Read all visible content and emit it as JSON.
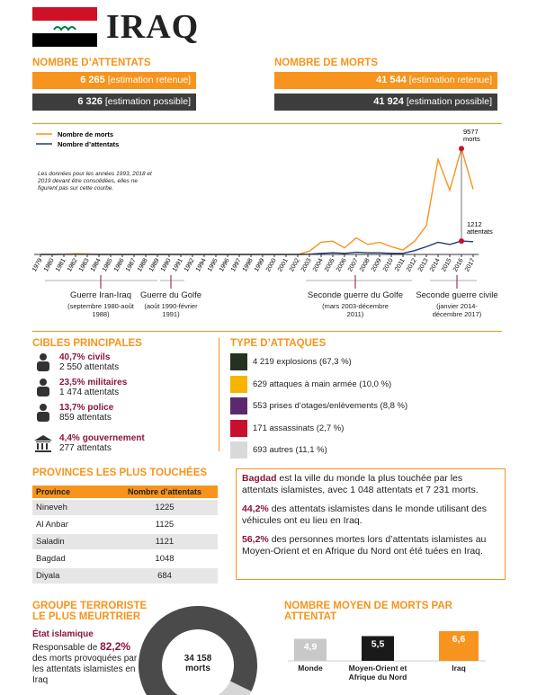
{
  "header": {
    "title": "IRAQ"
  },
  "attacks": {
    "title": "NOMBRE D’ATTENTATS",
    "rows": [
      {
        "value": "6 265",
        "note": "[estimation retenue]"
      },
      {
        "value": "6 326",
        "note": "[estimation possible]"
      }
    ]
  },
  "deaths": {
    "title": "NOMBRE DE MORTS",
    "rows": [
      {
        "value": "41 544",
        "note": "[estimation retenue]"
      },
      {
        "value": "41 924",
        "note": "[estimation possible]"
      }
    ]
  },
  "chart_data": [
    {
      "type": "line",
      "note": "Les données pour les années 1993, 2018 et 2019 devant être consolidées, elles ne figurent pas sur cette courbe.",
      "categories": [
        "1979",
        "1980",
        "1981",
        "1982",
        "1983",
        "1984",
        "1985",
        "1986",
        "1987",
        "1988",
        "1989",
        "1990",
        "1991",
        "1992",
        "1994",
        "1995",
        "1996",
        "1997",
        "1998",
        "1999",
        "2000",
        "2001",
        "2002",
        "2003",
        "2004",
        "2005",
        "2006",
        "2007",
        "2008",
        "2009",
        "2010",
        "2011",
        "2012",
        "2013",
        "2014",
        "2015",
        "2016",
        "2017"
      ],
      "ylim": [
        0,
        10000
      ],
      "series": [
        {
          "name": "Nombre de morts",
          "color": "#f7941d",
          "unit": "morts",
          "values": [
            0,
            0,
            20,
            60,
            40,
            0,
            0,
            0,
            0,
            0,
            0,
            0,
            0,
            0,
            0,
            0,
            0,
            0,
            0,
            0,
            0,
            0,
            0,
            300,
            1100,
            1200,
            600,
            1500,
            900,
            1100,
            700,
            400,
            1200,
            2600,
            8600,
            5800,
            9577,
            5900
          ]
        },
        {
          "name": "Nombre d’attentats",
          "color": "#1f3a6e",
          "unit": "attentats",
          "values": [
            0,
            0,
            2,
            6,
            4,
            0,
            0,
            0,
            0,
            0,
            0,
            0,
            0,
            0,
            0,
            0,
            0,
            0,
            0,
            0,
            0,
            0,
            0,
            20,
            100,
            150,
            100,
            200,
            150,
            150,
            100,
            100,
            350,
            700,
            1100,
            900,
            1212,
            1150
          ]
        }
      ],
      "wars": [
        {
          "label": "Guerre Iran-Iraq",
          "dates": "(septembre 1980-août 1988)"
        },
        {
          "label": "Guerre du Golfe",
          "dates": "(août 1990-février 1991)"
        },
        {
          "label": "Seconde guerre du Golfe",
          "dates": "(mars 2003-décembre 2011)"
        },
        {
          "label": "Seconde guerre civile",
          "dates": "(janvier 2014-décembre 2017)"
        }
      ]
    },
    {
      "type": "bar",
      "title": "NOMBRE MOYEN DE MORTS PAR ATTENTAT",
      "categories": [
        "Monde",
        "Moyen-Orient et Afrique du Nord",
        "Iraq"
      ],
      "values": [
        4.9,
        5.5,
        6.6
      ],
      "value_labels": [
        "4,9",
        "5,5",
        "6,6"
      ],
      "colors": [
        "#c8c8c8",
        "#1a1a1a",
        "#f7941d"
      ],
      "ylim": [
        0,
        8
      ]
    }
  ],
  "targets": {
    "title": "CIBLES PRINCIPALES",
    "items": [
      {
        "pct": "40,7%",
        "label": "civils",
        "count": "2 550 attentats"
      },
      {
        "pct": "23,5%",
        "label": "militaires",
        "count": "1 474 attentats"
      },
      {
        "pct": "13,7%",
        "label": "police",
        "count": "859 attentats"
      },
      {
        "pct": "4,4%",
        "label": "gouvernement",
        "count": "277 attentats"
      }
    ]
  },
  "attack_types": {
    "title": "TYPE D’ATTAQUES",
    "items": [
      {
        "label": "4 219 explosions (67,3 %)",
        "color": "#24331f"
      },
      {
        "label": "629 attaques à main armée (10,0 %)",
        "color": "#f5b400"
      },
      {
        "label": "553 prises d’otages/enlèvements (8,8 %)",
        "color": "#5b2a6e"
      },
      {
        "label": "171 assassinats (2,7 %)",
        "color": "#c8102e"
      },
      {
        "label": "693 autres (11,1 %)",
        "color": "#d9d9d9"
      }
    ]
  },
  "provinces": {
    "title": "PROVINCES LES PLUS TOUCHÉES",
    "header": [
      "Province",
      "Nombre d’attentats"
    ],
    "rows": [
      [
        "Nineveh",
        "1225"
      ],
      [
        "Al Anbar",
        "1125"
      ],
      [
        "Saladin",
        "1121"
      ],
      [
        "Bagdad",
        "1048"
      ],
      [
        "Diyala",
        "684"
      ]
    ]
  },
  "facts": [
    [
      {
        "strong": true,
        "text": "Bagdad"
      },
      {
        "strong": false,
        "text": " est la ville du monde la plus touchée par les attentats islamistes, avec 1 048 attentats et 7 231 morts."
      }
    ],
    [
      {
        "strong": true,
        "text": "44,2%"
      },
      {
        "strong": false,
        "text": " des attentats islamistes dans le monde utilisant des véhicules ont eu lieu en Iraq."
      }
    ],
    [
      {
        "strong": true,
        "text": "56,2%"
      },
      {
        "strong": false,
        "text": " des personnes mortes lors d’attentats islamistes au Moyen-Orient et en Afrique du Nord ont été tuées en Iraq."
      }
    ]
  ],
  "group": {
    "title": "GROUPE TERRORISTE LE PLUS MEURTRIER",
    "name": "État islamique",
    "text_before": "Responsable de ",
    "share_label": "82,2%",
    "text_after": " des morts provoquées par les attentats islamistes en Iraq",
    "share": 82.2,
    "deaths": "34 158",
    "deaths_unit": "morts"
  }
}
